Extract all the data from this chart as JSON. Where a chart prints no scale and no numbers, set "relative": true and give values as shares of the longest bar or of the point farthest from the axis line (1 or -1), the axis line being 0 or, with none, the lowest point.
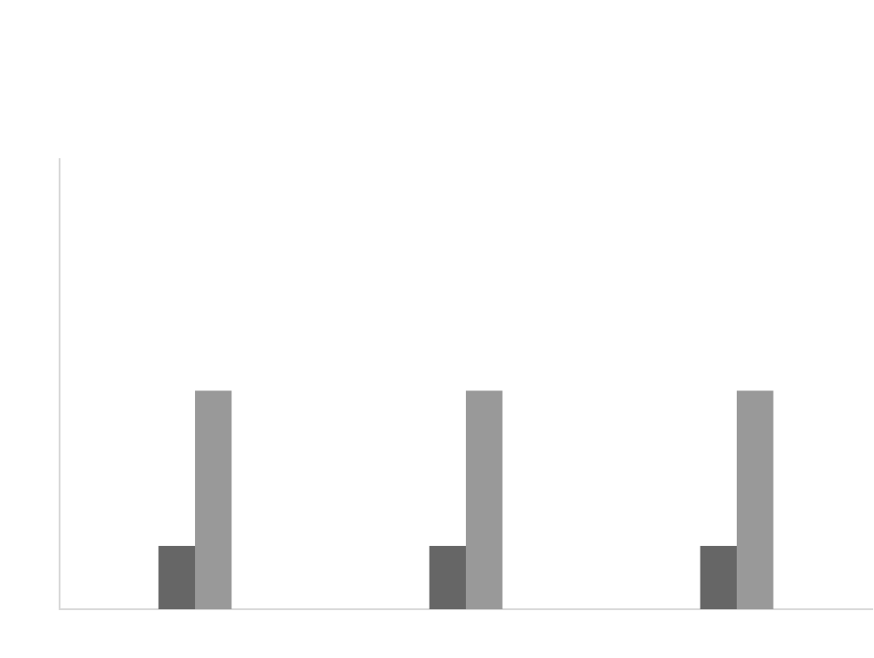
{
  "chart_data": {
    "type": "bar",
    "relative": true,
    "categories": [
      null,
      null,
      null
    ],
    "series": [
      {
        "color": "#666666",
        "values": [
          0.29,
          0.29,
          0.29
        ]
      },
      {
        "color": "#999999",
        "values": [
          1,
          1,
          1
        ]
      }
    ],
    "grid": false,
    "legend": false
  }
}
